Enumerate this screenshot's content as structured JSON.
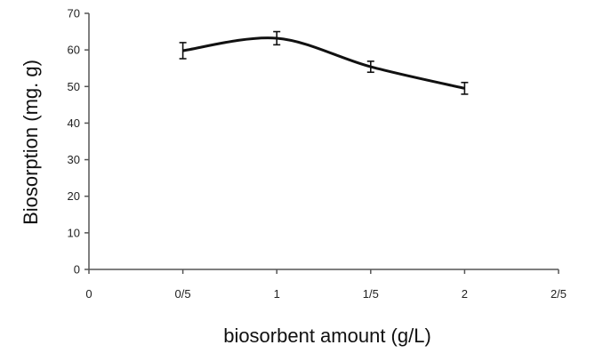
{
  "chart_data": {
    "type": "line",
    "title": "",
    "xlabel": "biosorbent amount (g/L)",
    "ylabel": "Biosorption (mg. g)",
    "x_tick_labels": [
      "0",
      "0/5",
      "1",
      "1/5",
      "2",
      "2/5"
    ],
    "x_ticks": [
      0,
      0.5,
      1,
      1.5,
      2,
      2.5
    ],
    "xlim": [
      0,
      2.5
    ],
    "y_ticks": [
      0,
      10,
      20,
      30,
      40,
      50,
      60,
      70
    ],
    "ylim": [
      0,
      70
    ],
    "grid": false,
    "legend": "none",
    "smooth": true,
    "series": [
      {
        "x": [
          0.5,
          1,
          1.5,
          2
        ],
        "values": [
          59.8,
          63.2,
          55.4,
          49.5
        ],
        "error": [
          2.2,
          1.8,
          1.5,
          1.6
        ]
      }
    ]
  }
}
